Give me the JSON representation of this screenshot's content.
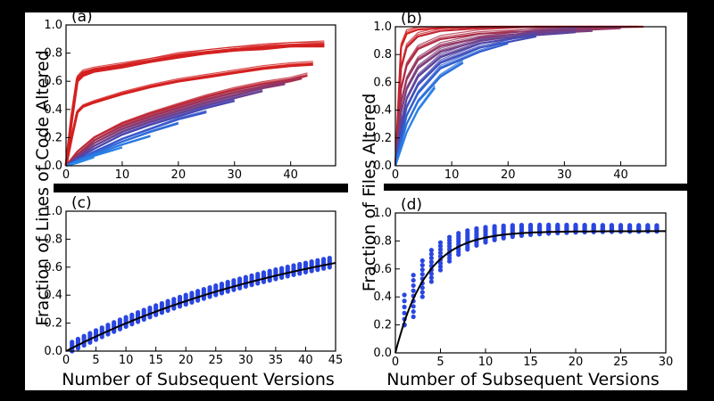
{
  "figure": {
    "ylabel_left": "Fraction of Lines of Code Altered",
    "ylabel_right": "Fraction of Files Altered",
    "xlabel_bottom": "Number of Subsequent Versions"
  },
  "colors": {
    "red": "#d42020",
    "blue": "#2a46e0",
    "fit": "#000000",
    "background": "#ffffff"
  },
  "chart_data": [
    {
      "panel_label": "(a)",
      "type": "line",
      "xlim": [
        0,
        48
      ],
      "ylim": [
        0,
        1.0
      ],
      "xticks": [
        0,
        10,
        20,
        30,
        40
      ],
      "yticks": [
        0.0,
        0.2,
        0.4,
        0.6,
        0.8,
        1.0
      ],
      "description_scale": "red-to-blue gradient of many version curves",
      "series": [
        {
          "x": [
            0,
            1,
            2,
            3,
            5,
            10,
            15,
            20,
            25,
            30,
            35,
            40,
            46
          ],
          "y": [
            0,
            0.35,
            0.62,
            0.66,
            0.68,
            0.71,
            0.74,
            0.78,
            0.8,
            0.82,
            0.84,
            0.85,
            0.86
          ],
          "color": "#d42020"
        },
        {
          "x": [
            0,
            1,
            2,
            3,
            5,
            10,
            15,
            20,
            25,
            30,
            35,
            40,
            46
          ],
          "y": [
            0,
            0.32,
            0.6,
            0.64,
            0.67,
            0.7,
            0.74,
            0.77,
            0.8,
            0.82,
            0.83,
            0.85,
            0.85
          ],
          "color": "#d42020"
        },
        {
          "x": [
            0,
            1,
            2,
            3,
            5,
            10,
            15,
            20,
            25,
            30,
            35,
            40,
            44
          ],
          "y": [
            0,
            0.2,
            0.38,
            0.42,
            0.45,
            0.51,
            0.56,
            0.6,
            0.63,
            0.66,
            0.69,
            0.71,
            0.72
          ],
          "color": "#d42020"
        },
        {
          "x": [
            0,
            2,
            5,
            10,
            15,
            20,
            25,
            30,
            35,
            40,
            43
          ],
          "y": [
            0,
            0.1,
            0.2,
            0.3,
            0.37,
            0.43,
            0.49,
            0.54,
            0.58,
            0.61,
            0.64
          ],
          "color": "#c02835"
        },
        {
          "x": [
            0,
            2,
            5,
            10,
            15,
            20,
            25,
            30,
            35,
            40,
            42
          ],
          "y": [
            0,
            0.08,
            0.18,
            0.28,
            0.35,
            0.41,
            0.47,
            0.52,
            0.56,
            0.6,
            0.62
          ],
          "color": "#a43050"
        },
        {
          "x": [
            0,
            2,
            5,
            10,
            15,
            20,
            25,
            30,
            35,
            39
          ],
          "y": [
            0,
            0.07,
            0.16,
            0.26,
            0.33,
            0.39,
            0.45,
            0.5,
            0.55,
            0.58
          ],
          "color": "#883a70"
        },
        {
          "x": [
            0,
            2,
            5,
            10,
            15,
            20,
            25,
            30,
            35
          ],
          "y": [
            0,
            0.06,
            0.14,
            0.24,
            0.31,
            0.37,
            0.43,
            0.48,
            0.53
          ],
          "color": "#6a4090"
        },
        {
          "x": [
            0,
            2,
            5,
            10,
            15,
            20,
            25,
            30
          ],
          "y": [
            0,
            0.05,
            0.12,
            0.22,
            0.29,
            0.35,
            0.41,
            0.46
          ],
          "color": "#4a46b0"
        },
        {
          "x": [
            0,
            2,
            5,
            10,
            15,
            20,
            25
          ],
          "y": [
            0,
            0.04,
            0.1,
            0.19,
            0.26,
            0.33,
            0.38
          ],
          "color": "#3a58cc"
        },
        {
          "x": [
            0,
            2,
            5,
            10,
            15,
            20
          ],
          "y": [
            0,
            0.04,
            0.09,
            0.17,
            0.24,
            0.3
          ],
          "color": "#2f6ad8"
        },
        {
          "x": [
            0,
            2,
            5,
            10,
            15
          ],
          "y": [
            0,
            0.03,
            0.08,
            0.15,
            0.21
          ],
          "color": "#2a78e0"
        },
        {
          "x": [
            0,
            2,
            5,
            10
          ],
          "y": [
            0,
            0.03,
            0.07,
            0.13
          ],
          "color": "#2a80e6"
        },
        {
          "x": [
            0,
            2,
            5
          ],
          "y": [
            0,
            0.02,
            0.06
          ],
          "color": "#2a88ea"
        }
      ]
    },
    {
      "panel_label": "(b)",
      "type": "line",
      "xlim": [
        0,
        48
      ],
      "ylim": [
        0,
        1.0
      ],
      "xticks": [
        0,
        10,
        20,
        30,
        40
      ],
      "yticks": [
        0.0,
        0.2,
        0.4,
        0.6,
        0.8,
        1.0
      ],
      "series": [
        {
          "x": [
            0,
            1,
            2,
            4,
            8,
            15,
            25,
            35,
            44
          ],
          "y": [
            0,
            0.85,
            0.95,
            0.98,
            0.99,
            1.0,
            1.0,
            1.0,
            1.0
          ],
          "color": "#d42020"
        },
        {
          "x": [
            0,
            1,
            2,
            4,
            8,
            15,
            25,
            35,
            43
          ],
          "y": [
            0,
            0.7,
            0.85,
            0.93,
            0.97,
            0.99,
            1.0,
            1.0,
            1.0
          ],
          "color": "#c42530"
        },
        {
          "x": [
            0,
            1,
            2,
            4,
            8,
            15,
            25,
            35,
            42
          ],
          "y": [
            0,
            0.55,
            0.72,
            0.84,
            0.91,
            0.95,
            0.97,
            0.99,
            1.0
          ],
          "color": "#b02c44"
        },
        {
          "x": [
            0,
            1,
            2,
            4,
            8,
            15,
            25,
            35,
            40
          ],
          "y": [
            0,
            0.45,
            0.62,
            0.76,
            0.86,
            0.92,
            0.96,
            0.98,
            0.99
          ],
          "color": "#963660"
        },
        {
          "x": [
            0,
            1,
            2,
            4,
            8,
            15,
            25,
            35
          ],
          "y": [
            0,
            0.38,
            0.55,
            0.7,
            0.82,
            0.9,
            0.95,
            0.97
          ],
          "color": "#7a3e7e"
        },
        {
          "x": [
            0,
            1,
            2,
            4,
            8,
            15,
            25,
            32
          ],
          "y": [
            0,
            0.3,
            0.48,
            0.64,
            0.78,
            0.88,
            0.94,
            0.96
          ],
          "color": "#5c449c"
        },
        {
          "x": [
            0,
            1,
            2,
            4,
            8,
            15,
            25
          ],
          "y": [
            0,
            0.25,
            0.42,
            0.58,
            0.74,
            0.85,
            0.93
          ],
          "color": "#404cba"
        },
        {
          "x": [
            0,
            1,
            2,
            4,
            8,
            15,
            20
          ],
          "y": [
            0,
            0.2,
            0.36,
            0.52,
            0.7,
            0.82,
            0.88
          ],
          "color": "#305ed0"
        },
        {
          "x": [
            0,
            1,
            2,
            4,
            8,
            12
          ],
          "y": [
            0,
            0.16,
            0.3,
            0.46,
            0.64,
            0.74
          ],
          "color": "#2a70dc"
        },
        {
          "x": [
            0,
            1,
            2,
            4,
            7
          ],
          "y": [
            0,
            0.12,
            0.24,
            0.4,
            0.56
          ],
          "color": "#2a80e6"
        }
      ]
    },
    {
      "panel_label": "(c)",
      "type": "scatter",
      "xlim": [
        0,
        45
      ],
      "ylim": [
        0,
        1.0
      ],
      "xticks": [
        0,
        5,
        10,
        15,
        20,
        25,
        30,
        35,
        40,
        45
      ],
      "yticks": [
        0.0,
        0.2,
        0.4,
        0.6,
        0.8,
        1.0
      ],
      "fit": {
        "form": "y = 1 - exp(-x/45.2)"
      },
      "points_model": {
        "x_max": 44,
        "spread_low": 0.04,
        "spread_high": 0.03
      }
    },
    {
      "panel_label": "(d)",
      "type": "scatter",
      "xlim": [
        0,
        30
      ],
      "ylim": [
        0,
        1.0
      ],
      "xticks": [
        0,
        5,
        10,
        15,
        20,
        25,
        30
      ],
      "yticks": [
        0.0,
        0.2,
        0.4,
        0.6,
        0.8,
        1.0
      ],
      "fit": {
        "form": "y = 0.87 * (1 - exp(-x/3.4))"
      },
      "points_model": {
        "x_max": 29
      }
    }
  ]
}
